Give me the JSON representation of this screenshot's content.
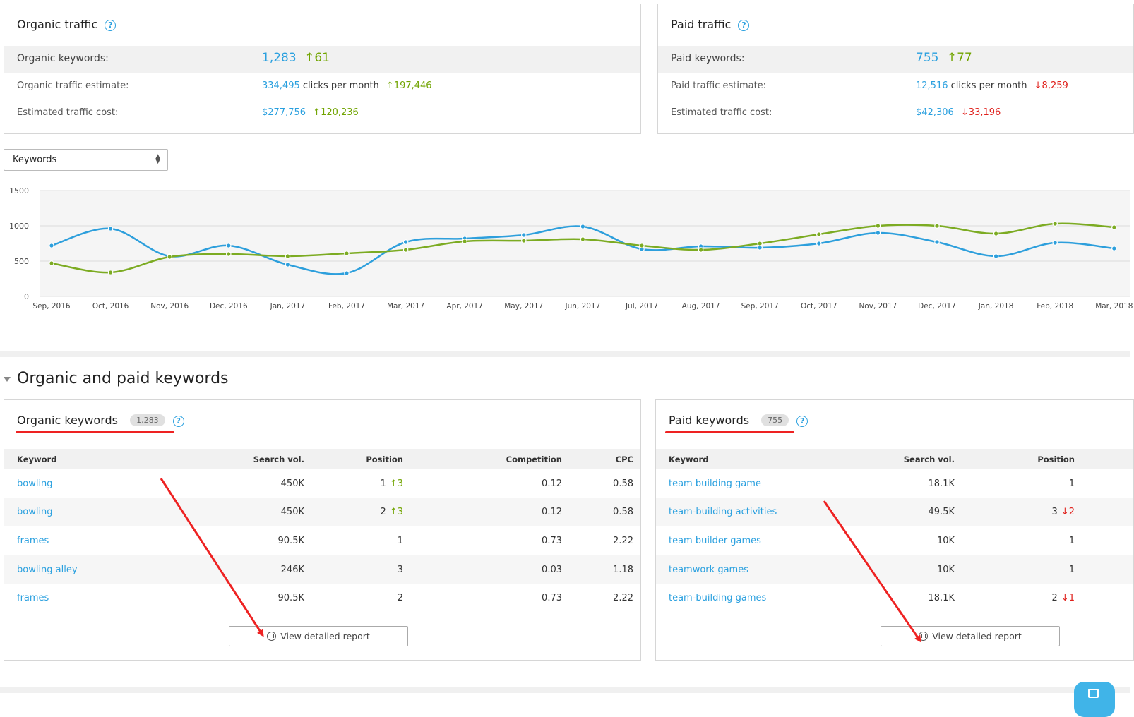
{
  "organic_traffic": {
    "title": "Organic traffic",
    "keywords_label": "Organic keywords:",
    "keywords_value": "1,283",
    "keywords_change": "↑61",
    "traffic_label": "Organic traffic estimate:",
    "traffic_value": "334,495",
    "traffic_unit": "clicks per month",
    "traffic_change": "↑197,446",
    "cost_label": "Estimated traffic cost:",
    "cost_value": "$277,756",
    "cost_change": "↑120,236"
  },
  "paid_traffic": {
    "title": "Paid traffic",
    "keywords_label": "Paid keywords:",
    "keywords_value": "755",
    "keywords_change": "↑77",
    "traffic_label": "Paid traffic estimate:",
    "traffic_value": "12,516",
    "traffic_unit": "clicks per month",
    "traffic_change": "↓8,259",
    "cost_label": "Estimated traffic cost:",
    "cost_value": "$42,306",
    "cost_change": "↓33,196"
  },
  "metric_select": {
    "value": "Keywords"
  },
  "chart_data": {
    "type": "line",
    "x": [
      "Sep, 2016",
      "Oct, 2016",
      "Nov, 2016",
      "Dec, 2016",
      "Jan, 2017",
      "Feb, 2017",
      "Mar, 2017",
      "Apr, 2017",
      "May, 2017",
      "Jun, 2017",
      "Jul, 2017",
      "Aug, 2017",
      "Sep, 2017",
      "Oct, 2017",
      "Nov, 2017",
      "Dec, 2017",
      "Jan, 2018",
      "Feb, 2018",
      "Mar, 2018"
    ],
    "series": [
      {
        "color": "#2d9fdc",
        "values": [
          720,
          960,
          570,
          720,
          450,
          330,
          770,
          820,
          870,
          990,
          670,
          710,
          690,
          750,
          900,
          770,
          570,
          760,
          680
        ]
      },
      {
        "color": "#7cab22",
        "values": [
          470,
          340,
          560,
          600,
          570,
          610,
          660,
          780,
          790,
          810,
          720,
          660,
          750,
          880,
          1000,
          1000,
          890,
          1030,
          980
        ]
      }
    ],
    "ylim": [
      0,
      1500
    ],
    "yticks": [
      "0",
      "500",
      "1000",
      "1500"
    ],
    "grid": true
  },
  "section": {
    "title": "Organic and paid keywords"
  },
  "organic_keywords": {
    "title": "Organic keywords",
    "count": "1,283",
    "columns": [
      "Keyword",
      "Search vol.",
      "Position",
      "Competition",
      "CPC"
    ],
    "rows": [
      {
        "keyword": "bowling",
        "vol": "450K",
        "pos": "1",
        "change": "↑3",
        "comp": "0.12",
        "cpc": "0.58"
      },
      {
        "keyword": "bowling",
        "vol": "450K",
        "pos": "2",
        "change": "↑3",
        "comp": "0.12",
        "cpc": "0.58"
      },
      {
        "keyword": "frames",
        "vol": "90.5K",
        "pos": "1",
        "change": "",
        "comp": "0.73",
        "cpc": "2.22"
      },
      {
        "keyword": "bowling alley",
        "vol": "246K",
        "pos": "3",
        "change": "",
        "comp": "0.03",
        "cpc": "1.18"
      },
      {
        "keyword": "frames",
        "vol": "90.5K",
        "pos": "2",
        "change": "",
        "comp": "0.73",
        "cpc": "2.22"
      }
    ],
    "button": "View detailed report"
  },
  "paid_keywords": {
    "title": "Paid keywords",
    "count": "755",
    "columns": [
      "Keyword",
      "Search vol.",
      "Position"
    ],
    "rows": [
      {
        "keyword": "team building game",
        "vol": "18.1K",
        "pos": "1",
        "change": ""
      },
      {
        "keyword": "team-building activities",
        "vol": "49.5K",
        "pos": "3",
        "change": "↓2"
      },
      {
        "keyword": "team builder games",
        "vol": "10K",
        "pos": "1",
        "change": ""
      },
      {
        "keyword": "teamwork games",
        "vol": "10K",
        "pos": "1",
        "change": ""
      },
      {
        "keyword": "team-building games",
        "vol": "18.1K",
        "pos": "2",
        "change": "↓1"
      }
    ],
    "button": "View detailed report"
  }
}
